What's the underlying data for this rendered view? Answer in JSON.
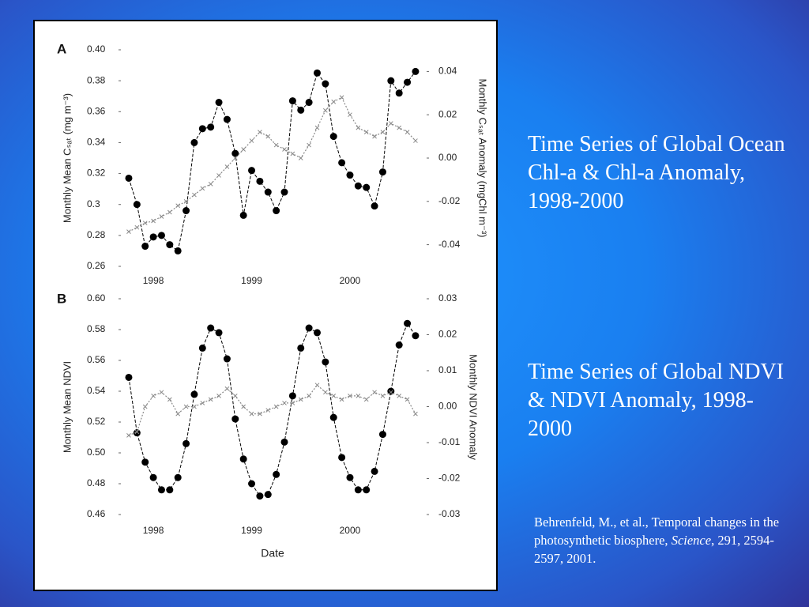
{
  "chart_data": [
    {
      "type": "line",
      "panel": "A",
      "ylabel": "Monthly Mean Cₛₐₜ (mg m⁻³)",
      "y2label": "Monthly Cₛₐₜ Anomaly (mgChl m⁻³)",
      "categories": [
        null,
        null,
        null,
        "1998",
        null,
        null,
        null,
        null,
        null,
        null,
        null,
        null,
        null,
        null,
        null,
        "1999",
        null,
        null,
        null,
        null,
        null,
        null,
        null,
        null,
        null,
        null,
        null,
        "2000",
        null,
        null,
        null,
        null,
        null,
        null,
        null,
        null
      ],
      "ylim": [
        0.26,
        0.4
      ],
      "yticks": [
        0.26,
        0.28,
        0.3,
        0.32,
        0.34,
        0.36,
        0.38,
        {
          "value": 0.4,
          "label": "0.40"
        }
      ],
      "y2lim": [
        -0.05,
        0.05
      ],
      "y2ticks": [
        -0.04,
        -0.02,
        {
          "value": 0,
          "label": "0.00"
        },
        0.02,
        0.04
      ],
      "series": [
        {
          "color": "#000000",
          "values": [
            0.317,
            0.3,
            0.273,
            0.279,
            0.28,
            0.274,
            0.27,
            0.296,
            0.34,
            0.349,
            0.35,
            0.366,
            0.355,
            0.333,
            0.293,
            0.322,
            0.315,
            0.308,
            0.296,
            0.308,
            0.367,
            0.361,
            0.366,
            0.385,
            0.378,
            0.344,
            0.327,
            0.319,
            0.312,
            0.311,
            0.299,
            0.321,
            0.38,
            0.372,
            0.379,
            0.386
          ]
        },
        {
          "color": "#8a8a8a",
          "axis": "y2",
          "values": [
            -0.034,
            -0.032,
            -0.03,
            -0.029,
            -0.027,
            -0.025,
            -0.022,
            -0.02,
            -0.017,
            -0.014,
            -0.012,
            -0.008,
            -0.004,
            0.0,
            0.004,
            0.008,
            0.012,
            0.01,
            0.006,
            0.004,
            0.002,
            0.0,
            0.006,
            0.014,
            0.022,
            0.026,
            0.028,
            0.02,
            0.014,
            0.012,
            0.01,
            0.012,
            0.016,
            0.014,
            0.012,
            0.008
          ]
        }
      ]
    },
    {
      "type": "line",
      "panel": "B",
      "ylabel": "Monthly Mean NDVI",
      "y2label": "Monthly NDVI Anomaly",
      "xlabel": "Date",
      "categories": [
        null,
        null,
        null,
        "1998",
        null,
        null,
        null,
        null,
        null,
        null,
        null,
        null,
        null,
        null,
        null,
        "1999",
        null,
        null,
        null,
        null,
        null,
        null,
        null,
        null,
        null,
        null,
        null,
        "2000",
        null,
        null,
        null,
        null,
        null,
        null,
        null,
        null
      ],
      "ylim": [
        0.46,
        0.6
      ],
      "yticks": [
        0.46,
        0.48,
        {
          "value": 0.5,
          "label": "0.50"
        },
        0.52,
        0.54,
        0.56,
        0.58,
        {
          "value": 0.6,
          "label": "0.60"
        }
      ],
      "y2lim": [
        -0.03,
        0.03
      ],
      "y2ticks": [
        -0.03,
        -0.02,
        -0.01,
        {
          "value": 0,
          "label": "0.00"
        },
        0.01,
        0.02,
        0.03
      ],
      "series": [
        {
          "color": "#000000",
          "values": [
            0.549,
            0.513,
            0.494,
            0.484,
            0.476,
            0.476,
            0.484,
            0.506,
            0.538,
            0.568,
            0.581,
            0.578,
            0.561,
            0.522,
            0.496,
            0.48,
            0.472,
            0.473,
            0.486,
            0.507,
            0.537,
            0.568,
            0.581,
            0.578,
            0.559,
            0.523,
            0.497,
            0.484,
            0.476,
            0.476,
            0.488,
            0.512,
            0.54,
            0.57,
            0.584,
            0.576
          ]
        },
        {
          "color": "#8a8a8a",
          "axis": "y2",
          "values": [
            -0.008,
            -0.007,
            0.0,
            0.003,
            0.004,
            0.002,
            -0.002,
            0.0,
            0.0,
            0.001,
            0.002,
            0.003,
            0.005,
            0.003,
            0.0,
            -0.002,
            -0.002,
            -0.001,
            0.0,
            0.001,
            0.001,
            0.002,
            0.003,
            0.006,
            0.004,
            0.003,
            0.002,
            0.003,
            0.003,
            0.002,
            0.004,
            0.003,
            0.004,
            0.003,
            0.002,
            -0.002
          ]
        }
      ]
    }
  ],
  "slide": {
    "heading1": "Time Series of Global Ocean Chl-a & Chl-a Anomaly, 1998-2000",
    "heading2": "Time Series of Global NDVI & NDVI Anomaly, 1998-2000",
    "citation": {
      "before": "Behrenfeld, M., et al., Temporal changes in the photosynthetic biosphere, ",
      "journal": "Science",
      "after": ", 291, 2594-2597, 2001."
    }
  }
}
